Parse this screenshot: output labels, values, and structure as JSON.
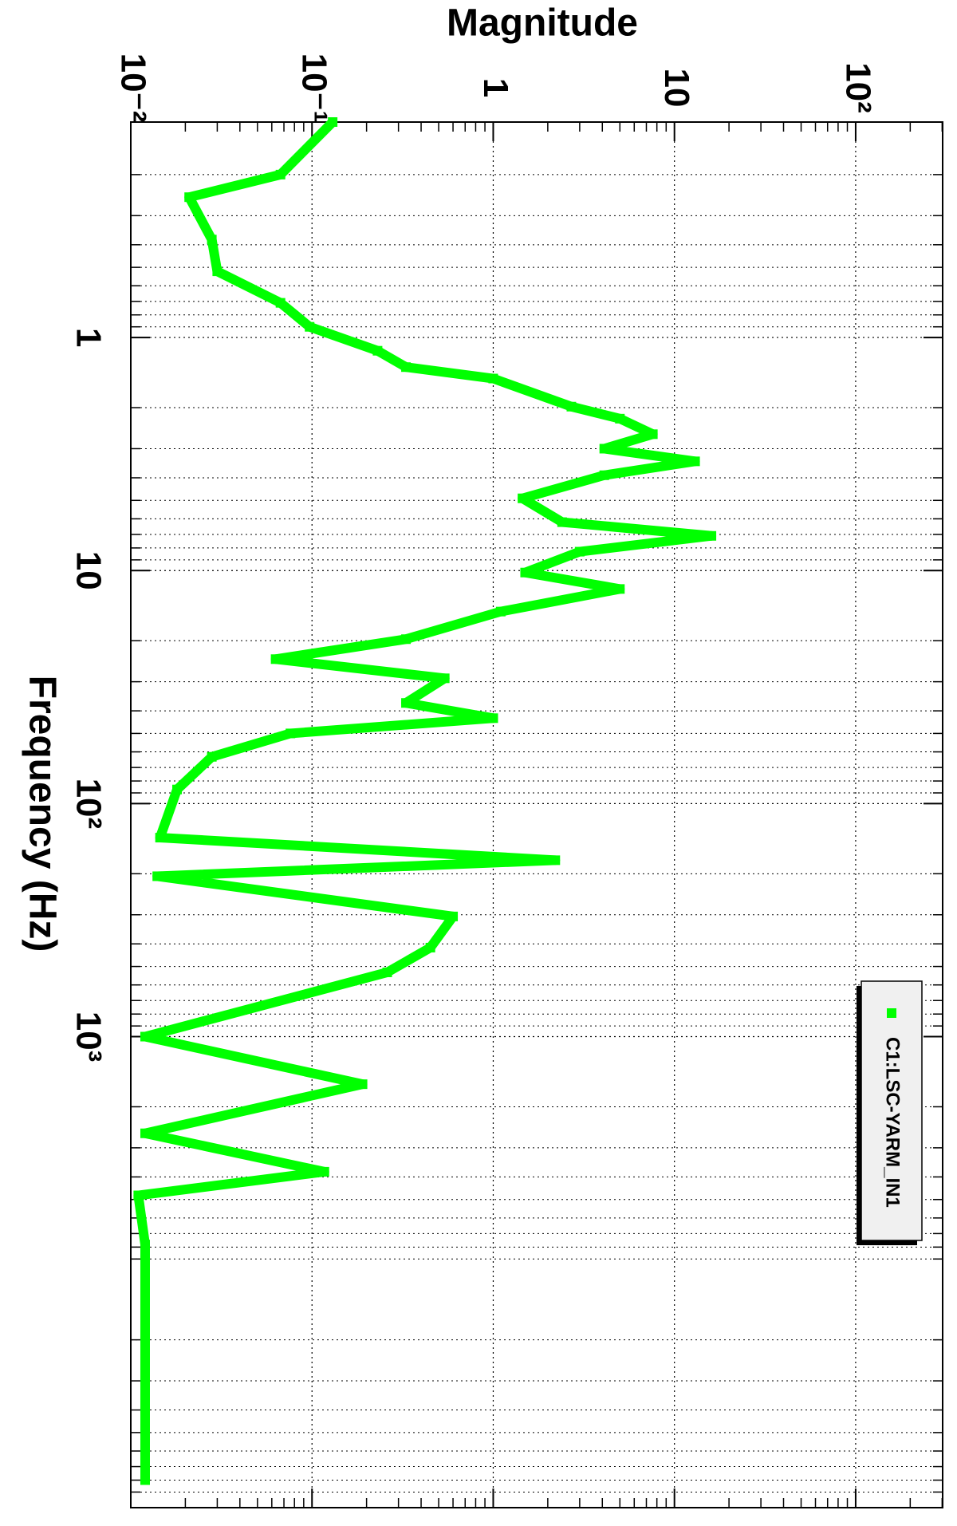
{
  "chart_data": {
    "type": "line",
    "title": "Magnitude",
    "xlabel": "Frequency (Hz)",
    "log_x": true,
    "log_y": true,
    "grid": true,
    "legend": "bottom-right",
    "x": [
      0.119,
      0.2,
      0.25,
      0.38,
      0.52,
      0.71,
      0.9,
      1.14,
      1.34,
      1.5,
      1.98,
      2.23,
      2.6,
      3.0,
      3.4,
      3.9,
      4.9,
      6.2,
      7.1,
      8.3,
      10.2,
      12,
      15,
      19.7,
      24,
      29,
      37,
      43,
      50,
      63,
      87,
      140,
      175,
      205,
      305,
      415,
      530,
      1000,
      1600,
      2600,
      3800,
      4800,
      7800,
      80000
    ],
    "series": [
      {
        "name": "C1:LSC-YARM_IN1",
        "color": "#00ff00",
        "values": [
          0.13,
          0.067,
          0.021,
          0.028,
          0.03,
          0.067,
          0.097,
          0.23,
          0.33,
          1.0,
          2.7,
          5.0,
          7.6,
          4.1,
          13,
          4.1,
          1.45,
          2.4,
          16,
          3,
          1.5,
          5,
          1.1,
          0.33,
          0.063,
          0.54,
          0.33,
          1.0,
          0.076,
          0.028,
          0.018,
          0.0145,
          2.2,
          0.014,
          0.6,
          0.45,
          0.26,
          0.012,
          0.19,
          0.012,
          0.117,
          0.011,
          0.012,
          0.012
        ]
      }
    ],
    "xlim": [
      0.119,
      105000
    ],
    "xticks": [
      1,
      10,
      {
        "value": 100,
        "label": "10²"
      },
      {
        "value": 1000,
        "label": "10³"
      }
    ],
    "ylim": [
      0.01,
      302
    ],
    "yticks": [
      {
        "value": 0.01,
        "label": "10⁻²"
      },
      {
        "value": 0.1,
        "label": "10⁻¹"
      },
      1,
      10,
      {
        "value": 100,
        "label": "10²"
      }
    ]
  }
}
